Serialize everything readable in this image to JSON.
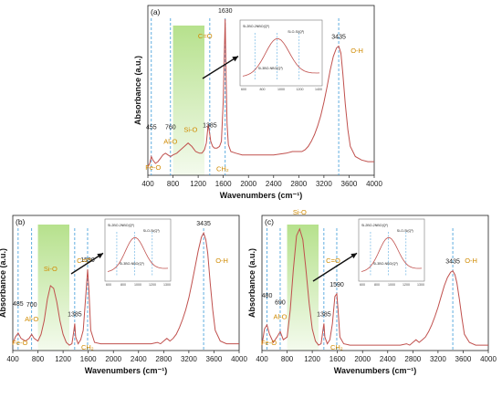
{
  "chart_data": [
    {
      "panel": "(a)",
      "type": "line",
      "xlabel": "Wavenumbers (cm⁻¹)",
      "ylabel": "Absorbance (a.u.)",
      "xlim": [
        400,
        4000
      ],
      "xticks": [
        "400",
        "800",
        "1200",
        "1600",
        "2000",
        "2400",
        "2800",
        "3200",
        "3600",
        "4000"
      ],
      "series": [
        {
          "x": [
            400,
            430,
            455,
            480,
            520,
            560,
            600,
            640,
            680,
            720,
            760,
            800,
            860,
            920,
            980,
            1040,
            1100,
            1160,
            1220,
            1260,
            1300,
            1330,
            1360,
            1385,
            1400,
            1430,
            1460,
            1500,
            1540,
            1570,
            1600,
            1615,
            1630,
            1645,
            1660,
            1680,
            1720,
            1800,
            1900,
            2000,
            2200,
            2400,
            2600,
            2700,
            2800,
            2850,
            2900,
            2950,
            3000,
            3050,
            3100,
            3150,
            3200,
            3250,
            3300,
            3350,
            3400,
            3435,
            3470,
            3500,
            3540,
            3580,
            3620,
            3700,
            3800,
            3900,
            4000
          ],
          "y": [
            0.05,
            0.07,
            0.11,
            0.09,
            0.07,
            0.08,
            0.1,
            0.12,
            0.13,
            0.12,
            0.11,
            0.12,
            0.13,
            0.15,
            0.17,
            0.19,
            0.17,
            0.14,
            0.13,
            0.13,
            0.15,
            0.19,
            0.3,
            0.24,
            0.2,
            0.17,
            0.16,
            0.16,
            0.17,
            0.2,
            0.45,
            0.7,
            0.92,
            0.55,
            0.3,
            0.18,
            0.14,
            0.13,
            0.12,
            0.12,
            0.12,
            0.12,
            0.13,
            0.14,
            0.14,
            0.14,
            0.15,
            0.17,
            0.2,
            0.24,
            0.29,
            0.35,
            0.43,
            0.52,
            0.62,
            0.7,
            0.75,
            0.76,
            0.72,
            0.6,
            0.42,
            0.27,
            0.17,
            0.11,
            0.09,
            0.08,
            0.08
          ]
        }
      ],
      "annotations": [
        {
          "x": 455,
          "label": "455",
          "name": "Fe-O"
        },
        {
          "x": 760,
          "label": "760",
          "name": "Al-O"
        },
        {
          "x": 1080,
          "name": "Si-O"
        },
        {
          "x": 1385,
          "label": "1385",
          "name": "CH₂"
        },
        {
          "x": 1630,
          "label": "1630",
          "name": "C=O"
        },
        {
          "x": 3435,
          "label": "3435",
          "name": "O-H"
        }
      ]
    },
    {
      "panel": "(b)",
      "type": "line",
      "xlabel": "Wavenumbers (cm⁻¹)",
      "ylabel": "Absorbance (a.u.)",
      "xlim": [
        400,
        4000
      ],
      "xticks": [
        "400",
        "800",
        "1200",
        "1600",
        "2000",
        "2400",
        "2800",
        "3200",
        "3600",
        "4000"
      ],
      "series": [
        {
          "x": [
            400,
            440,
            485,
            530,
            600,
            660,
            700,
            740,
            800,
            850,
            900,
            950,
            1000,
            1050,
            1100,
            1150,
            1200,
            1250,
            1300,
            1340,
            1370,
            1385,
            1400,
            1440,
            1480,
            1520,
            1560,
            1590,
            1610,
            1640,
            1700,
            1800,
            2000,
            2200,
            2400,
            2600,
            2700,
            2750,
            2800,
            2850,
            2900,
            2950,
            3000,
            3050,
            3100,
            3150,
            3200,
            3250,
            3300,
            3350,
            3400,
            3435,
            3470,
            3500,
            3540,
            3580,
            3620,
            3700,
            3800,
            3900,
            4000
          ],
          "y": [
            0.05,
            0.1,
            0.13,
            0.09,
            0.07,
            0.09,
            0.12,
            0.09,
            0.07,
            0.12,
            0.22,
            0.38,
            0.48,
            0.46,
            0.36,
            0.22,
            0.12,
            0.06,
            0.04,
            0.05,
            0.14,
            0.2,
            0.1,
            0.05,
            0.08,
            0.15,
            0.4,
            0.6,
            0.45,
            0.15,
            0.06,
            0.05,
            0.05,
            0.05,
            0.05,
            0.05,
            0.06,
            0.05,
            0.07,
            0.09,
            0.07,
            0.09,
            0.12,
            0.17,
            0.23,
            0.3,
            0.39,
            0.5,
            0.62,
            0.74,
            0.84,
            0.87,
            0.82,
            0.72,
            0.5,
            0.3,
            0.15,
            0.07,
            0.05,
            0.05,
            0.05
          ]
        }
      ],
      "annotations": [
        {
          "x": 485,
          "label": "485",
          "name": "Fe-O"
        },
        {
          "x": 700,
          "label": "700",
          "name": "Al-O"
        },
        {
          "x": 1000,
          "name": "Si-O"
        },
        {
          "x": 1385,
          "label": "1385",
          "name": "CH₂"
        },
        {
          "x": 1590,
          "label": "1590",
          "name": "C=O"
        },
        {
          "x": 3435,
          "label": "3435",
          "name": "O-H"
        }
      ]
    },
    {
      "panel": "(c)",
      "type": "line",
      "xlabel": "Wavenumbers (cm⁻¹)",
      "ylabel": "Absorbance (a.u.)",
      "xlim": [
        400,
        4000
      ],
      "xticks": [
        "400",
        "800",
        "1200",
        "1600",
        "2000",
        "2400",
        "2800",
        "3200",
        "3600",
        "4000"
      ],
      "series": [
        {
          "x": [
            400,
            440,
            480,
            520,
            580,
            640,
            690,
            740,
            800,
            850,
            900,
            950,
            1000,
            1050,
            1100,
            1150,
            1200,
            1250,
            1300,
            1340,
            1370,
            1385,
            1400,
            1440,
            1480,
            1520,
            1560,
            1590,
            1610,
            1640,
            1700,
            1800,
            2000,
            2200,
            2400,
            2600,
            2700,
            2750,
            2800,
            2850,
            2900,
            2950,
            3000,
            3050,
            3100,
            3150,
            3200,
            3250,
            3300,
            3350,
            3400,
            3435,
            3470,
            3500,
            3540,
            3580,
            3620,
            3700,
            3800,
            3900,
            4000
          ],
          "y": [
            0.04,
            0.16,
            0.19,
            0.12,
            0.06,
            0.1,
            0.14,
            0.08,
            0.1,
            0.3,
            0.6,
            0.85,
            0.9,
            0.82,
            0.6,
            0.35,
            0.16,
            0.07,
            0.04,
            0.05,
            0.15,
            0.2,
            0.1,
            0.05,
            0.08,
            0.2,
            0.4,
            0.42,
            0.3,
            0.1,
            0.05,
            0.04,
            0.04,
            0.04,
            0.04,
            0.04,
            0.05,
            0.04,
            0.06,
            0.08,
            0.06,
            0.08,
            0.1,
            0.14,
            0.19,
            0.25,
            0.32,
            0.4,
            0.48,
            0.54,
            0.58,
            0.59,
            0.56,
            0.5,
            0.38,
            0.24,
            0.12,
            0.06,
            0.04,
            0.04,
            0.04
          ]
        }
      ],
      "annotations": [
        {
          "x": 480,
          "label": "480",
          "name": "Fe-O"
        },
        {
          "x": 690,
          "label": "690",
          "name": "Al-O"
        },
        {
          "x": 1000,
          "name": "Si-O"
        },
        {
          "x": 1385,
          "label": "1385",
          "name": "CH₂"
        },
        {
          "x": 1590,
          "label": "1590",
          "name": "C=O"
        },
        {
          "x": 3435,
          "label": "3435",
          "name": "O-H"
        }
      ]
    }
  ],
  "insets": [
    {
      "panel": "(a)",
      "labels": [
        "Si-2BO-2NBO(Q²)",
        "Si-O-Si(Q³)",
        "Si-3BO-NBO(Q³)"
      ],
      "xticks": [
        "600",
        "800",
        "1000",
        "1200",
        "1400"
      ]
    },
    {
      "panel": "(b)",
      "labels": [
        "Si-2BO-2NBO(Q²)",
        "Si-O-Si(Q³)",
        "Si-3BO-NBO(Q³)"
      ],
      "xticks": [
        "600",
        "800",
        "1000",
        "1200",
        "1300"
      ]
    },
    {
      "panel": "(c)",
      "labels": [
        "Si-2BO-2NBO(Q²)",
        "Si-O-Si(Q³)",
        "Si-3BO-NBO(Q³)"
      ],
      "xticks": [
        "600",
        "800",
        "1000",
        "1200",
        "1300"
      ]
    }
  ],
  "colors": {
    "line": "#c0504d",
    "dash": "#3a9ad9",
    "label": "#d08a00",
    "shade": "#8fd14f",
    "arrow": "#111111"
  }
}
